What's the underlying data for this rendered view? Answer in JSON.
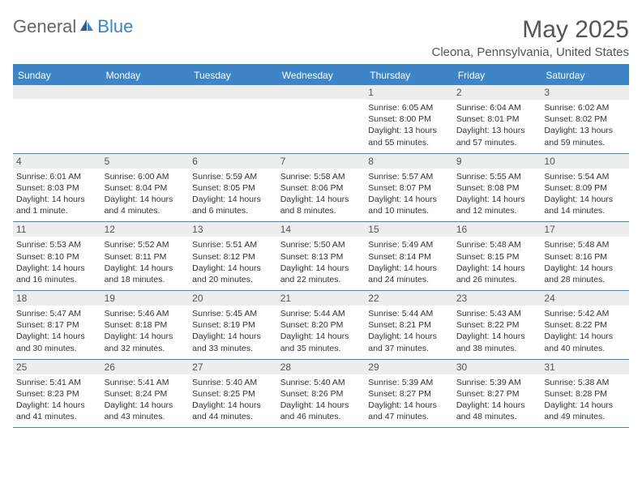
{
  "logo": {
    "part1": "General",
    "part2": "Blue"
  },
  "header": {
    "month_title": "May 2025",
    "location": "Cleona, Pennsylvania, United States"
  },
  "colors": {
    "brand_blue": "#3d85c6",
    "text_gray": "#555555",
    "cell_bg": "#eceded",
    "body_text": "#333333"
  },
  "fonts": {
    "title_size": 30,
    "location_size": 15,
    "dow_size": 12,
    "daynum_size": 12,
    "body_size": 10.5
  },
  "days_of_week": [
    "Sunday",
    "Monday",
    "Tuesday",
    "Wednesday",
    "Thursday",
    "Friday",
    "Saturday"
  ],
  "weeks": [
    [
      {
        "num": "",
        "lines": []
      },
      {
        "num": "",
        "lines": []
      },
      {
        "num": "",
        "lines": []
      },
      {
        "num": "",
        "lines": []
      },
      {
        "num": "1",
        "lines": [
          "Sunrise: 6:05 AM",
          "Sunset: 8:00 PM",
          "Daylight: 13 hours and 55 minutes."
        ]
      },
      {
        "num": "2",
        "lines": [
          "Sunrise: 6:04 AM",
          "Sunset: 8:01 PM",
          "Daylight: 13 hours and 57 minutes."
        ]
      },
      {
        "num": "3",
        "lines": [
          "Sunrise: 6:02 AM",
          "Sunset: 8:02 PM",
          "Daylight: 13 hours and 59 minutes."
        ]
      }
    ],
    [
      {
        "num": "4",
        "lines": [
          "Sunrise: 6:01 AM",
          "Sunset: 8:03 PM",
          "Daylight: 14 hours and 1 minute."
        ]
      },
      {
        "num": "5",
        "lines": [
          "Sunrise: 6:00 AM",
          "Sunset: 8:04 PM",
          "Daylight: 14 hours and 4 minutes."
        ]
      },
      {
        "num": "6",
        "lines": [
          "Sunrise: 5:59 AM",
          "Sunset: 8:05 PM",
          "Daylight: 14 hours and 6 minutes."
        ]
      },
      {
        "num": "7",
        "lines": [
          "Sunrise: 5:58 AM",
          "Sunset: 8:06 PM",
          "Daylight: 14 hours and 8 minutes."
        ]
      },
      {
        "num": "8",
        "lines": [
          "Sunrise: 5:57 AM",
          "Sunset: 8:07 PM",
          "Daylight: 14 hours and 10 minutes."
        ]
      },
      {
        "num": "9",
        "lines": [
          "Sunrise: 5:55 AM",
          "Sunset: 8:08 PM",
          "Daylight: 14 hours and 12 minutes."
        ]
      },
      {
        "num": "10",
        "lines": [
          "Sunrise: 5:54 AM",
          "Sunset: 8:09 PM",
          "Daylight: 14 hours and 14 minutes."
        ]
      }
    ],
    [
      {
        "num": "11",
        "lines": [
          "Sunrise: 5:53 AM",
          "Sunset: 8:10 PM",
          "Daylight: 14 hours and 16 minutes."
        ]
      },
      {
        "num": "12",
        "lines": [
          "Sunrise: 5:52 AM",
          "Sunset: 8:11 PM",
          "Daylight: 14 hours and 18 minutes."
        ]
      },
      {
        "num": "13",
        "lines": [
          "Sunrise: 5:51 AM",
          "Sunset: 8:12 PM",
          "Daylight: 14 hours and 20 minutes."
        ]
      },
      {
        "num": "14",
        "lines": [
          "Sunrise: 5:50 AM",
          "Sunset: 8:13 PM",
          "Daylight: 14 hours and 22 minutes."
        ]
      },
      {
        "num": "15",
        "lines": [
          "Sunrise: 5:49 AM",
          "Sunset: 8:14 PM",
          "Daylight: 14 hours and 24 minutes."
        ]
      },
      {
        "num": "16",
        "lines": [
          "Sunrise: 5:48 AM",
          "Sunset: 8:15 PM",
          "Daylight: 14 hours and 26 minutes."
        ]
      },
      {
        "num": "17",
        "lines": [
          "Sunrise: 5:48 AM",
          "Sunset: 8:16 PM",
          "Daylight: 14 hours and 28 minutes."
        ]
      }
    ],
    [
      {
        "num": "18",
        "lines": [
          "Sunrise: 5:47 AM",
          "Sunset: 8:17 PM",
          "Daylight: 14 hours and 30 minutes."
        ]
      },
      {
        "num": "19",
        "lines": [
          "Sunrise: 5:46 AM",
          "Sunset: 8:18 PM",
          "Daylight: 14 hours and 32 minutes."
        ]
      },
      {
        "num": "20",
        "lines": [
          "Sunrise: 5:45 AM",
          "Sunset: 8:19 PM",
          "Daylight: 14 hours and 33 minutes."
        ]
      },
      {
        "num": "21",
        "lines": [
          "Sunrise: 5:44 AM",
          "Sunset: 8:20 PM",
          "Daylight: 14 hours and 35 minutes."
        ]
      },
      {
        "num": "22",
        "lines": [
          "Sunrise: 5:44 AM",
          "Sunset: 8:21 PM",
          "Daylight: 14 hours and 37 minutes."
        ]
      },
      {
        "num": "23",
        "lines": [
          "Sunrise: 5:43 AM",
          "Sunset: 8:22 PM",
          "Daylight: 14 hours and 38 minutes."
        ]
      },
      {
        "num": "24",
        "lines": [
          "Sunrise: 5:42 AM",
          "Sunset: 8:22 PM",
          "Daylight: 14 hours and 40 minutes."
        ]
      }
    ],
    [
      {
        "num": "25",
        "lines": [
          "Sunrise: 5:41 AM",
          "Sunset: 8:23 PM",
          "Daylight: 14 hours and 41 minutes."
        ]
      },
      {
        "num": "26",
        "lines": [
          "Sunrise: 5:41 AM",
          "Sunset: 8:24 PM",
          "Daylight: 14 hours and 43 minutes."
        ]
      },
      {
        "num": "27",
        "lines": [
          "Sunrise: 5:40 AM",
          "Sunset: 8:25 PM",
          "Daylight: 14 hours and 44 minutes."
        ]
      },
      {
        "num": "28",
        "lines": [
          "Sunrise: 5:40 AM",
          "Sunset: 8:26 PM",
          "Daylight: 14 hours and 46 minutes."
        ]
      },
      {
        "num": "29",
        "lines": [
          "Sunrise: 5:39 AM",
          "Sunset: 8:27 PM",
          "Daylight: 14 hours and 47 minutes."
        ]
      },
      {
        "num": "30",
        "lines": [
          "Sunrise: 5:39 AM",
          "Sunset: 8:27 PM",
          "Daylight: 14 hours and 48 minutes."
        ]
      },
      {
        "num": "31",
        "lines": [
          "Sunrise: 5:38 AM",
          "Sunset: 8:28 PM",
          "Daylight: 14 hours and 49 minutes."
        ]
      }
    ]
  ]
}
